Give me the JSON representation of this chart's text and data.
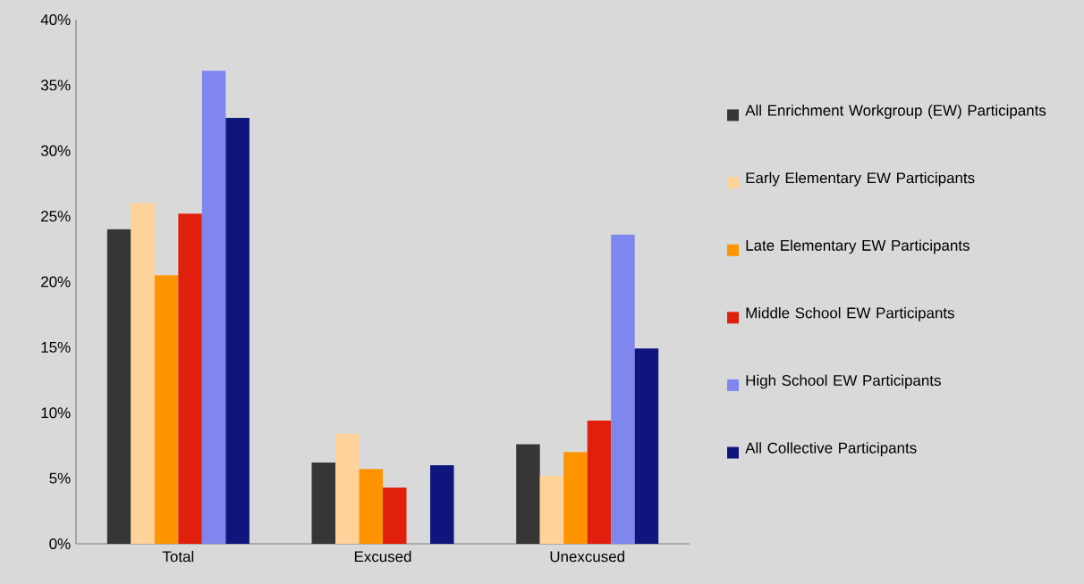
{
  "chart_data": {
    "type": "bar",
    "categories": [
      "Total",
      "Excused",
      "Unexcused"
    ],
    "series": [
      {
        "name": "All Enrichment Workgroup (EW) Participants",
        "color": "#363636",
        "values": [
          24.0,
          6.2,
          7.6
        ]
      },
      {
        "name": "Early Elementary EW Participants",
        "color": "#fed298",
        "values": [
          26.0,
          8.4,
          5.2
        ]
      },
      {
        "name": "Late Elementary EW Participants",
        "color": "#fe9400",
        "values": [
          20.5,
          5.7,
          7.0
        ]
      },
      {
        "name": "Middle School EW Participants",
        "color": "#e0200c",
        "values": [
          25.2,
          4.3,
          9.4
        ]
      },
      {
        "name": "High School EW Participants",
        "color": "#7f86ee",
        "values": [
          36.1,
          0,
          23.6
        ]
      },
      {
        "name": "All Collective Participants",
        "color": "#0e167e",
        "values": [
          32.5,
          6.0,
          14.9
        ]
      }
    ],
    "ylim": [
      0,
      40
    ],
    "yticks": [
      {
        "value": 0,
        "label": "0%"
      },
      {
        "value": 5,
        "label": "5%"
      },
      {
        "value": 10,
        "label": "10%"
      },
      {
        "value": 15,
        "label": "15%"
      },
      {
        "value": 20,
        "label": "20%"
      },
      {
        "value": 25,
        "label": "25%"
      },
      {
        "value": 30,
        "label": "30%"
      },
      {
        "value": 35,
        "label": "35%"
      },
      {
        "value": 40,
        "label": "40%"
      }
    ],
    "grid": false,
    "legend": "right"
  }
}
